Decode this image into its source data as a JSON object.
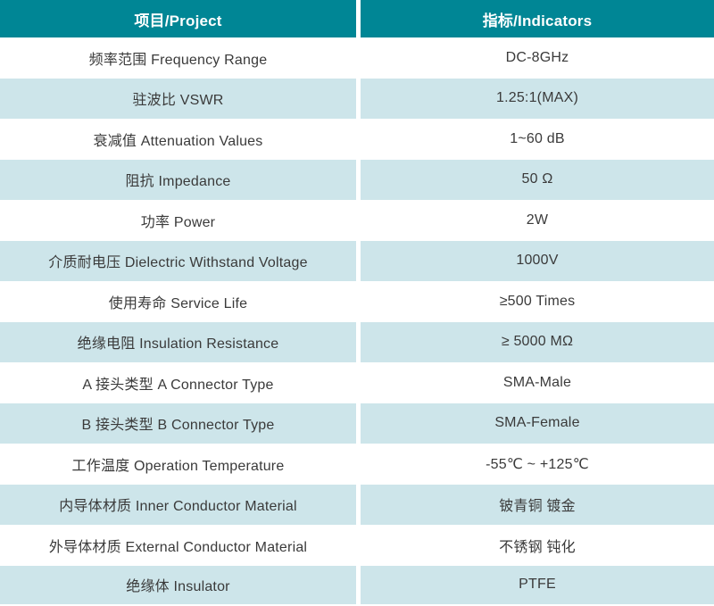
{
  "table": {
    "header": {
      "project": "项目/Project",
      "indicators": "指标/Indicators"
    },
    "rows": [
      {
        "project": "频率范围 Frequency Range",
        "indicator": "DC-8GHz"
      },
      {
        "project": "驻波比 VSWR",
        "indicator": "1.25:1(MAX)"
      },
      {
        "project": "衰减值 Attenuation Values",
        "indicator": "1~60 dB"
      },
      {
        "project": "阻抗 Impedance",
        "indicator": "50 Ω"
      },
      {
        "project": "功率 Power",
        "indicator": "2W"
      },
      {
        "project": "介质耐电压 Dielectric Withstand Voltage",
        "indicator": "1000V"
      },
      {
        "project": "使用寿命 Service Life",
        "indicator": "≥500 Times"
      },
      {
        "project": "绝缘电阻 Insulation Resistance",
        "indicator": "≥ 5000 MΩ"
      },
      {
        "project": "A 接头类型 A Connector Type",
        "indicator": "SMA-Male"
      },
      {
        "project": "B 接头类型 B Connector Type",
        "indicator": "SMA-Female"
      },
      {
        "project": "工作温度 Operation Temperature",
        "indicator": "-55℃ ~ +125℃"
      },
      {
        "project": "内导体材质 Inner Conductor Material",
        "indicator": "铍青铜 镀金"
      },
      {
        "project": "外导体材质 External Conductor Material",
        "indicator": "不锈钢 钝化"
      },
      {
        "project": "绝缘体 Insulator",
        "indicator": "PTFE"
      }
    ],
    "colors": {
      "header_bg": "#008695",
      "header_text": "#ffffff",
      "row_alt_bg": "#cde5ea",
      "row_bg": "#ffffff",
      "body_text": "#3a3a3a",
      "divider": "#ffffff"
    }
  }
}
